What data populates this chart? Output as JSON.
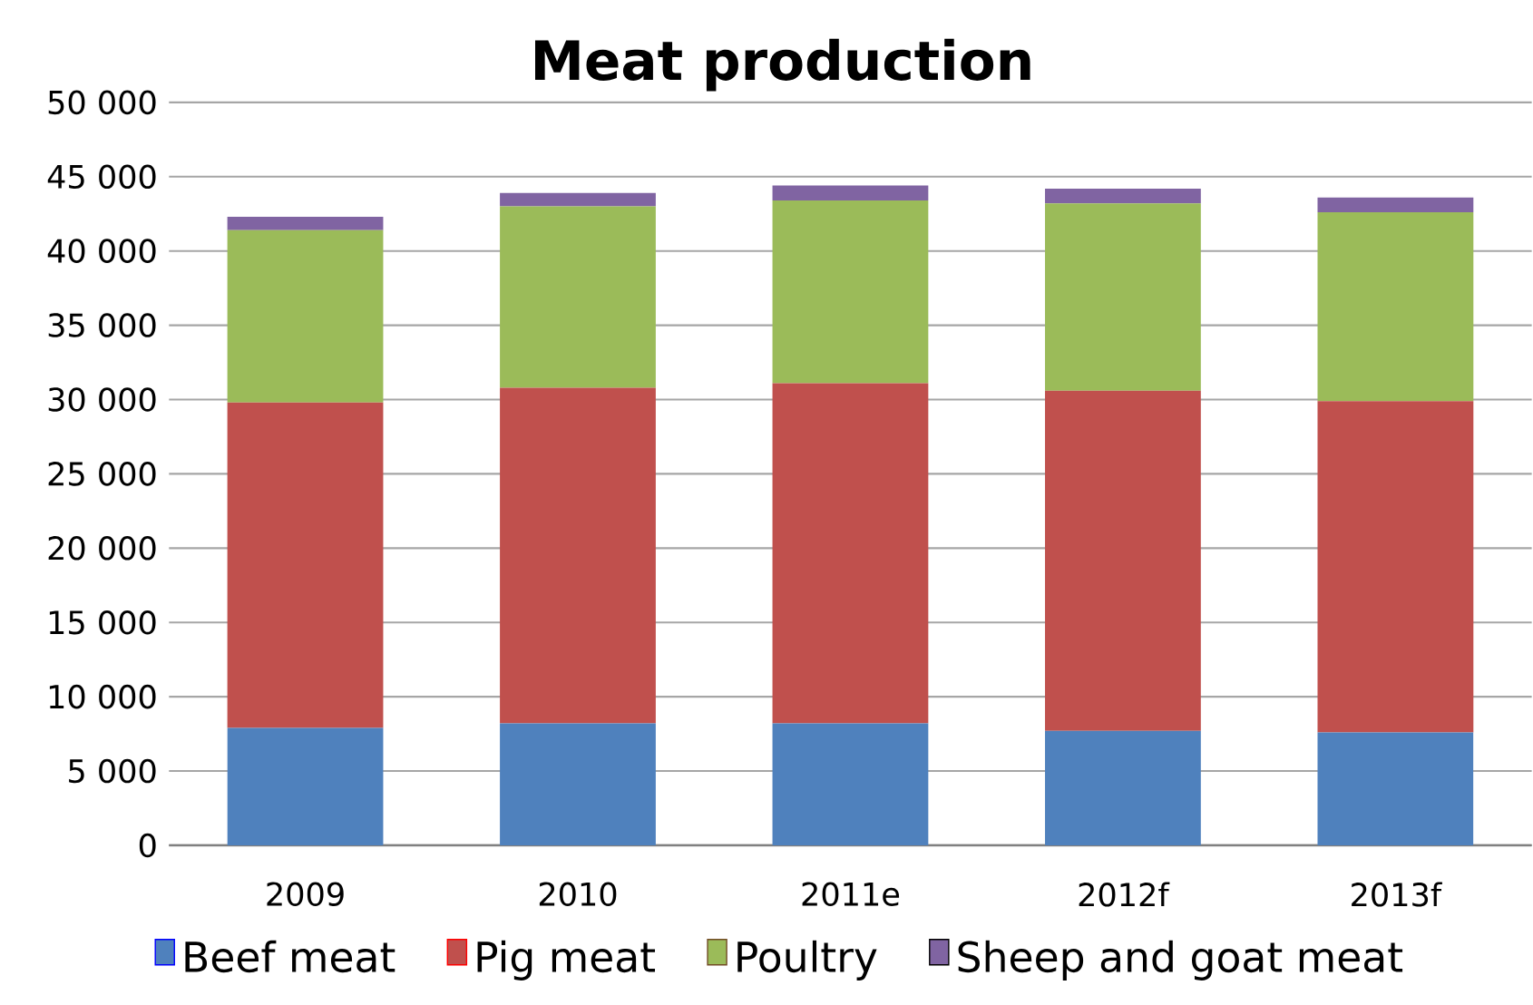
{
  "chart_data": {
    "type": "bar",
    "title": "Meat production",
    "stacked": true,
    "categories": [
      "2009",
      "2010",
      "2011e",
      "2012f",
      "2013f"
    ],
    "series": [
      {
        "name": "Beef meat",
        "color": "#4f81bd",
        "values": [
          7900,
          8200,
          8200,
          7700,
          7600
        ]
      },
      {
        "name": "Pig meat",
        "color": "#c0504d",
        "values": [
          21900,
          22600,
          22900,
          22900,
          22300
        ]
      },
      {
        "name": "Poultry",
        "color": "#9bbb59",
        "values": [
          11600,
          12200,
          12300,
          12600,
          12700
        ]
      },
      {
        "name": "Sheep and goat meat",
        "color": "#8064a2",
        "values": [
          900,
          900,
          1000,
          1000,
          1000
        ]
      }
    ],
    "ylim": [
      0,
      50000
    ],
    "yticks": [
      {
        "value": 0,
        "label": "0"
      },
      {
        "value": 5000,
        "label": "5 000"
      },
      {
        "value": 10000,
        "label": "10 000"
      },
      {
        "value": 15000,
        "label": "15 000"
      },
      {
        "value": 20000,
        "label": "20 000"
      },
      {
        "value": 25000,
        "label": "25 000"
      },
      {
        "value": 30000,
        "label": "30 000"
      },
      {
        "value": 35000,
        "label": "35 000"
      },
      {
        "value": 40000,
        "label": "40 000"
      },
      {
        "value": 45000,
        "label": "45 000"
      },
      {
        "value": 50000,
        "label": "50 000"
      }
    ],
    "grid": "y",
    "legend": "bottom"
  }
}
